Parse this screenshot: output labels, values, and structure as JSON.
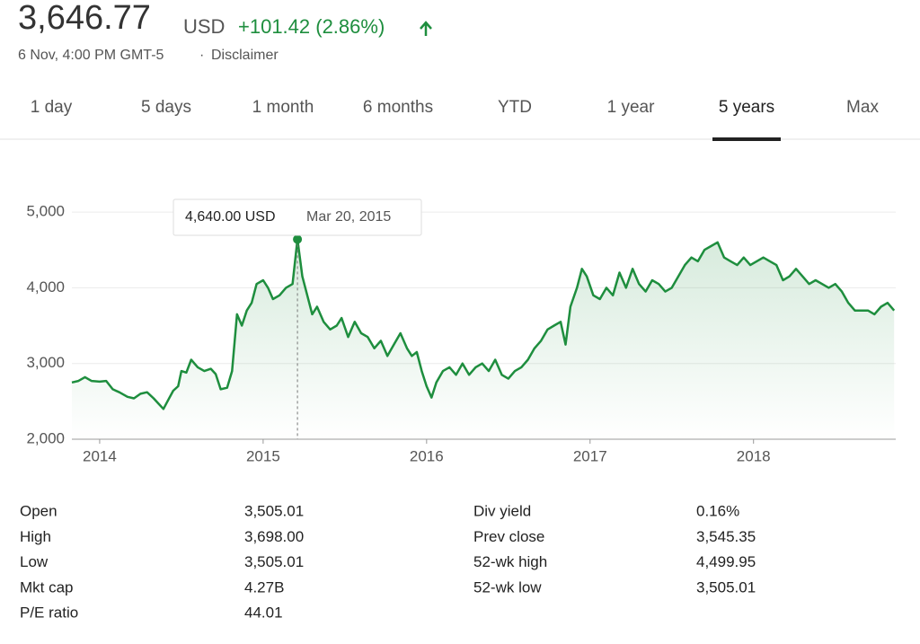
{
  "header": {
    "price": "3,646.77",
    "currency": "USD",
    "change": "+101.42 (2.86%)",
    "timestamp": "6 Nov, 4:00 PM GMT-5",
    "separator": "·",
    "disclaimer": "Disclaimer"
  },
  "tabs": [
    "1 day",
    "5 days",
    "1 month",
    "6 months",
    "YTD",
    "1 year",
    "5 years",
    "Max"
  ],
  "active_tab": 6,
  "chart_data": {
    "type": "line",
    "x": [
      2013.83,
      2013.87,
      2013.91,
      2013.95,
      2014.0,
      2014.04,
      2014.08,
      2014.12,
      2014.17,
      2014.21,
      2014.25,
      2014.29,
      2014.33,
      2014.36,
      2014.39,
      2014.42,
      2014.45,
      2014.48,
      2014.5,
      2014.53,
      2014.56,
      2014.6,
      2014.64,
      2014.68,
      2014.71,
      2014.74,
      2014.78,
      2014.81,
      2014.84,
      2014.87,
      2014.9,
      2014.93,
      2014.96,
      2015.0,
      2015.03,
      2015.06,
      2015.1,
      2015.14,
      2015.18,
      2015.21,
      2015.24,
      2015.27,
      2015.3,
      2015.33,
      2015.37,
      2015.41,
      2015.45,
      2015.48,
      2015.52,
      2015.56,
      2015.6,
      2015.64,
      2015.68,
      2015.72,
      2015.76,
      2015.8,
      2015.84,
      2015.88,
      2015.91,
      2015.94,
      2015.97,
      2016.0,
      2016.03,
      2016.06,
      2016.1,
      2016.14,
      2016.18,
      2016.22,
      2016.26,
      2016.3,
      2016.34,
      2016.38,
      2016.42,
      2016.46,
      2016.5,
      2016.54,
      2016.58,
      2016.62,
      2016.66,
      2016.7,
      2016.74,
      2016.78,
      2016.82,
      2016.85,
      2016.88,
      2016.92,
      2016.95,
      2016.98,
      2017.02,
      2017.06,
      2017.1,
      2017.14,
      2017.18,
      2017.22,
      2017.26,
      2017.3,
      2017.34,
      2017.38,
      2017.42,
      2017.46,
      2017.5,
      2017.54,
      2017.58,
      2017.62,
      2017.66,
      2017.7,
      2017.74,
      2017.78,
      2017.82,
      2017.86,
      2017.9,
      2017.94,
      2017.98,
      2018.02,
      2018.06,
      2018.1,
      2018.14,
      2018.18,
      2018.22,
      2018.26,
      2018.3,
      2018.34,
      2018.38,
      2018.42,
      2018.46,
      2018.5,
      2018.54,
      2018.58,
      2018.62,
      2018.66,
      2018.7,
      2018.74,
      2018.78,
      2018.82,
      2018.86
    ],
    "series": [
      {
        "color": "#1e8e3e",
        "values": [
          2750,
          2770,
          2820,
          2770,
          2760,
          2770,
          2660,
          2620,
          2560,
          2540,
          2600,
          2620,
          2540,
          2470,
          2400,
          2520,
          2640,
          2700,
          2900,
          2880,
          3050,
          2950,
          2900,
          2930,
          2860,
          2660,
          2680,
          2900,
          3650,
          3500,
          3700,
          3800,
          4050,
          4100,
          4000,
          3850,
          3900,
          4000,
          4050,
          4640,
          4150,
          3900,
          3650,
          3750,
          3550,
          3450,
          3500,
          3600,
          3350,
          3550,
          3400,
          3350,
          3200,
          3300,
          3100,
          3250,
          3400,
          3200,
          3100,
          3150,
          2900,
          2700,
          2550,
          2750,
          2900,
          2950,
          2850,
          3000,
          2850,
          2950,
          3000,
          2900,
          3050,
          2850,
          2800,
          2900,
          2950,
          3050,
          3200,
          3300,
          3450,
          3500,
          3550,
          3250,
          3750,
          4000,
          4250,
          4150,
          3900,
          3850,
          4000,
          3900,
          4200,
          4000,
          4250,
          4050,
          3950,
          4100,
          4050,
          3950,
          4000,
          4150,
          4300,
          4400,
          4350,
          4500,
          4550,
          4600,
          4400,
          4350,
          4300,
          4400,
          4300,
          4350,
          4400,
          4350,
          4300,
          4100,
          4150,
          4250,
          4150,
          4050,
          4100,
          4050,
          4000,
          4050,
          3950,
          3800,
          3700,
          3700,
          3700,
          3650,
          3750,
          3800,
          3700
        ]
      }
    ],
    "xlim": [
      2013.83,
      2018.87
    ],
    "xticks": [
      2014,
      2015,
      2016,
      2017,
      2018
    ],
    "ylim": [
      2000,
      5250
    ],
    "yticks": [
      {
        "value": 2000,
        "label": "2,000"
      },
      {
        "value": 3000,
        "label": "3,000"
      },
      {
        "value": 4000,
        "label": "4,000"
      },
      {
        "value": 5000,
        "label": "5,000"
      }
    ],
    "grid": true,
    "tooltip": {
      "x": 2015.21,
      "value": 4640,
      "label": "4,640.00 USD",
      "date": "Mar 20, 2015"
    }
  },
  "stats": {
    "left": [
      [
        "Open",
        "3,505.01"
      ],
      [
        "High",
        "3,698.00"
      ],
      [
        "Low",
        "3,505.01"
      ],
      [
        "Mkt cap",
        "4.27B"
      ],
      [
        "P/E ratio",
        "44.01"
      ]
    ],
    "right": [
      [
        "Div yield",
        "0.16%"
      ],
      [
        "Prev close",
        "3,545.35"
      ],
      [
        "52-wk high",
        "4,499.95"
      ],
      [
        "52-wk low",
        "3,505.01"
      ]
    ]
  }
}
